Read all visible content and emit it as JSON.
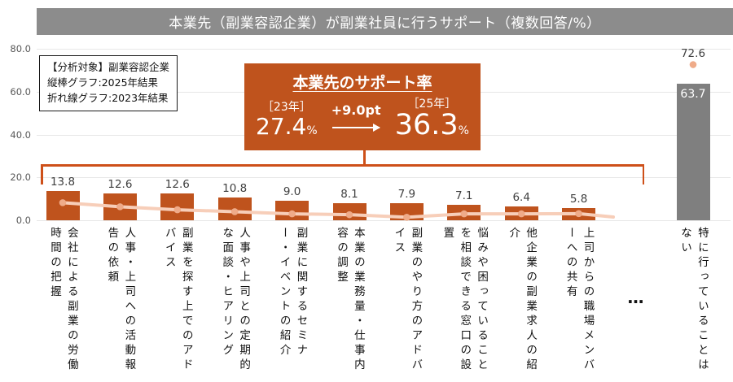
{
  "title": "本業先（副業容認企業）が副業社員に行うサポート（複数回答/%）",
  "analysis_note": {
    "line1": "【分析対象】副業容認企業",
    "line2": "縦棒グラフ:2025年結果",
    "line3": "折れ線グラフ:2023年結果"
  },
  "callout": {
    "title": "本業先のサポート率",
    "left_year": "［23年］",
    "left_value": "27.4",
    "left_unit": "%",
    "change": "+9.0pt",
    "right_year": "［25年］",
    "right_value": "36.3",
    "right_unit": "%"
  },
  "ellipsis_label": "…",
  "chart_data": {
    "type": "bar",
    "title": "本業先（副業容認企業）が副業社員に行うサポート（複数回答/%）",
    "ylim": [
      0,
      80
    ],
    "y_ticks": [
      "80.0",
      "60.0",
      "40.0",
      "20.0",
      "0.0"
    ],
    "grid": true,
    "legend_position": "top-left-box",
    "categories": [
      "会社による副業の労働時間の把握",
      "人事・上司への活動報告の依頼",
      "副業を探す上でのアドバイス",
      "人事や上司との定期的な面談・ヒアリング",
      "副業に関するセミナー・イベントの紹介",
      "本業の業務量・仕事内容の調整",
      "副業のやり方のアドバイス",
      "悩みや困っていることを相談できる窓口の設置",
      "他企業の副業求人の紹介",
      "上司からの職場メンバーへの共有"
    ],
    "series": [
      {
        "name": "縦棒グラフ（2025年結果）",
        "type": "bar",
        "values": [
          13.8,
          12.6,
          12.6,
          10.8,
          9.0,
          8.1,
          7.9,
          7.1,
          6.4,
          5.8
        ]
      },
      {
        "name": "折れ線グラフ（2023年結果）",
        "type": "line",
        "values_estimated": [
          8.2,
          6.3,
          4.9,
          4.0,
          3.0,
          2.6,
          1.4,
          3.0,
          3.0,
          3.1
        ]
      }
    ],
    "last_category": {
      "label": "特に行っていることはない",
      "bar_value_2025": 63.7,
      "line_value_2023": 72.6
    },
    "colors": {
      "bar_main": "#BF531D",
      "bar_last": "#7F7F7F",
      "line": "#F7CEB9",
      "marker": "#EFAB89",
      "title_bar_bg": "#8C8C8C",
      "bracket": "#CE5019",
      "gridline": "#E7E7E7",
      "value_label": "#3F3F3F",
      "axis_label": "#595959"
    }
  }
}
